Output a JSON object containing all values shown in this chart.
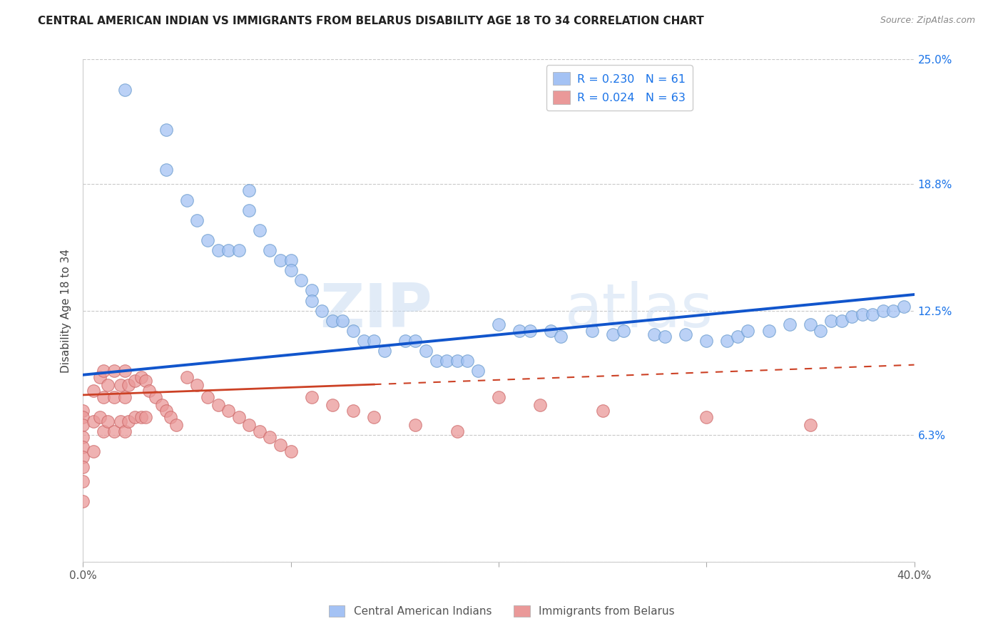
{
  "title": "CENTRAL AMERICAN INDIAN VS IMMIGRANTS FROM BELARUS DISABILITY AGE 18 TO 34 CORRELATION CHART",
  "source": "Source: ZipAtlas.com",
  "ylabel": "Disability Age 18 to 34",
  "xlim": [
    0,
    0.4
  ],
  "ylim": [
    0,
    0.25
  ],
  "legend_r1": "R = 0.230",
  "legend_n1": "N = 61",
  "legend_r2": "R = 0.024",
  "legend_n2": "N = 63",
  "color_blue": "#a4c2f4",
  "color_pink": "#ea9999",
  "color_blue_line": "#1155cc",
  "color_pink_line_solid": "#cc4125",
  "color_pink_line_dash": "#cc4125",
  "watermark_zip": "ZIP",
  "watermark_atlas": "atlas",
  "blue_x": [
    0.02,
    0.04,
    0.04,
    0.05,
    0.055,
    0.06,
    0.065,
    0.07,
    0.075,
    0.08,
    0.08,
    0.085,
    0.09,
    0.095,
    0.1,
    0.1,
    0.105,
    0.11,
    0.11,
    0.115,
    0.12,
    0.125,
    0.13,
    0.135,
    0.14,
    0.145,
    0.155,
    0.16,
    0.165,
    0.17,
    0.175,
    0.18,
    0.185,
    0.19,
    0.2,
    0.21,
    0.215,
    0.225,
    0.23,
    0.245,
    0.255,
    0.26,
    0.275,
    0.28,
    0.29,
    0.3,
    0.31,
    0.315,
    0.32,
    0.33,
    0.34,
    0.35,
    0.355,
    0.36,
    0.365,
    0.37,
    0.375,
    0.38,
    0.385,
    0.39,
    0.395
  ],
  "blue_y": [
    0.235,
    0.215,
    0.195,
    0.18,
    0.17,
    0.16,
    0.155,
    0.155,
    0.155,
    0.185,
    0.175,
    0.165,
    0.155,
    0.15,
    0.15,
    0.145,
    0.14,
    0.135,
    0.13,
    0.125,
    0.12,
    0.12,
    0.115,
    0.11,
    0.11,
    0.105,
    0.11,
    0.11,
    0.105,
    0.1,
    0.1,
    0.1,
    0.1,
    0.095,
    0.118,
    0.115,
    0.115,
    0.115,
    0.112,
    0.115,
    0.113,
    0.115,
    0.113,
    0.112,
    0.113,
    0.11,
    0.11,
    0.112,
    0.115,
    0.115,
    0.118,
    0.118,
    0.115,
    0.12,
    0.12,
    0.122,
    0.123,
    0.123,
    0.125,
    0.125,
    0.127
  ],
  "pink_x": [
    0.0,
    0.0,
    0.0,
    0.0,
    0.0,
    0.0,
    0.0,
    0.0,
    0.0,
    0.005,
    0.005,
    0.005,
    0.008,
    0.008,
    0.01,
    0.01,
    0.01,
    0.012,
    0.012,
    0.015,
    0.015,
    0.015,
    0.018,
    0.018,
    0.02,
    0.02,
    0.02,
    0.022,
    0.022,
    0.025,
    0.025,
    0.028,
    0.028,
    0.03,
    0.03,
    0.032,
    0.035,
    0.038,
    0.04,
    0.042,
    0.045,
    0.05,
    0.055,
    0.06,
    0.065,
    0.07,
    0.075,
    0.08,
    0.085,
    0.09,
    0.095,
    0.1,
    0.11,
    0.12,
    0.13,
    0.14,
    0.16,
    0.18,
    0.2,
    0.22,
    0.25,
    0.3,
    0.35
  ],
  "pink_y": [
    0.075,
    0.072,
    0.068,
    0.062,
    0.057,
    0.052,
    0.047,
    0.04,
    0.03,
    0.085,
    0.07,
    0.055,
    0.092,
    0.072,
    0.095,
    0.082,
    0.065,
    0.088,
    0.07,
    0.095,
    0.082,
    0.065,
    0.088,
    0.07,
    0.095,
    0.082,
    0.065,
    0.088,
    0.07,
    0.09,
    0.072,
    0.092,
    0.072,
    0.09,
    0.072,
    0.085,
    0.082,
    0.078,
    0.075,
    0.072,
    0.068,
    0.092,
    0.088,
    0.082,
    0.078,
    0.075,
    0.072,
    0.068,
    0.065,
    0.062,
    0.058,
    0.055,
    0.082,
    0.078,
    0.075,
    0.072,
    0.068,
    0.065,
    0.082,
    0.078,
    0.075,
    0.072,
    0.068
  ]
}
